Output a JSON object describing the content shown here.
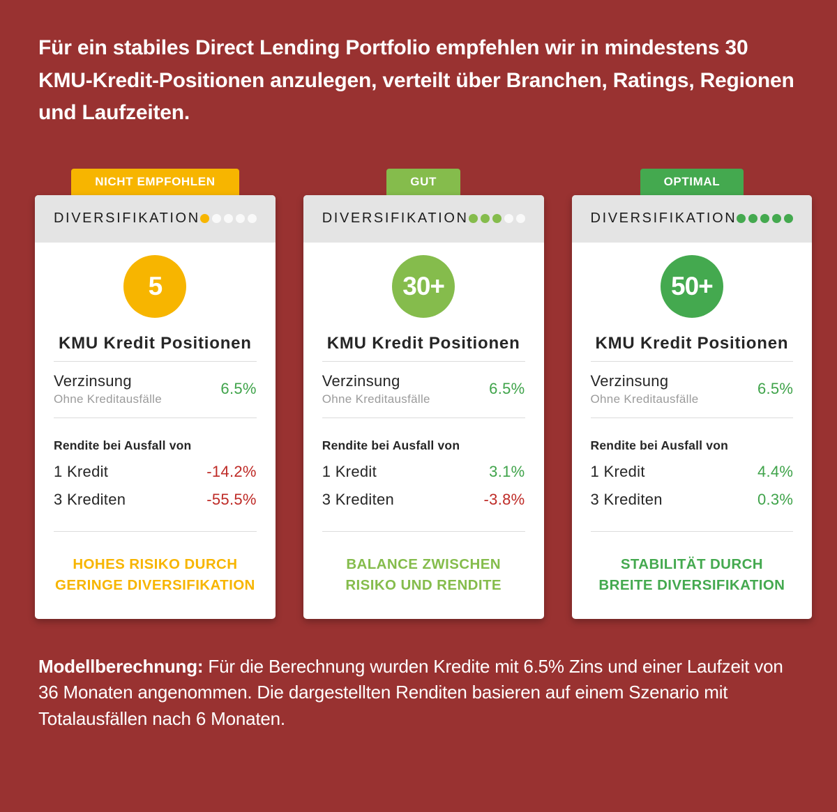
{
  "colors": {
    "background": "#993231",
    "card_bg": "#FFFFFF",
    "header_bg": "#E4E4E4",
    "empty_dot": "#F9F9F9",
    "yellow": "#F7B500",
    "light_green": "#85BC4C",
    "green": "#44A94F",
    "value_green": "#3FA34A",
    "value_red": "#BE2A26",
    "dark_text": "#262626",
    "muted_text": "#9B9B9B",
    "white": "#FFFFFF"
  },
  "headline": "Für ein stabiles Direct Lending Portfolio empfehlen wir in mindestens 30 KMU-Kredit-Positionen anzulegen, verteilt über Branchen, Ratings, Regionen und Laufzeiten.",
  "cards": [
    {
      "badge": "NICHT EMPFOHLEN",
      "badge_color": "#F7B500",
      "header": "DIVERSIFIKATION",
      "dots_total": 5,
      "dots_filled": 1,
      "dot_color": "#F7B500",
      "circle_value": "5",
      "circle_color": "#F7B500",
      "title": "KMU Kredit Positionen",
      "interest_label": "Verzinsung",
      "interest_sub": "Ohne Kreditausfälle",
      "interest_value": "6.5%",
      "interest_value_color": "#3FA34A",
      "default_heading": "Rendite bei Ausfall von",
      "rows": [
        {
          "label": "1 Kredit",
          "value": "-14.2%",
          "color": "#BE2A26"
        },
        {
          "label": "3 Krediten",
          "value": "-55.5%",
          "color": "#BE2A26"
        }
      ],
      "message_line1": "HOHES RISIKO DURCH",
      "message_line2": "GERINGE DIVERSIFIKATION",
      "message_color": "#F7B500"
    },
    {
      "badge": "GUT",
      "badge_color": "#85BC4C",
      "header": "DIVERSIFIKATION",
      "dots_total": 5,
      "dots_filled": 3,
      "dot_color": "#85BC4C",
      "circle_value": "30+",
      "circle_color": "#85BC4C",
      "title": "KMU Kredit Positionen",
      "interest_label": "Verzinsung",
      "interest_sub": "Ohne Kreditausfälle",
      "interest_value": "6.5%",
      "interest_value_color": "#3FA34A",
      "default_heading": "Rendite bei Ausfall von",
      "rows": [
        {
          "label": "1 Kredit",
          "value": "3.1%",
          "color": "#3FA34A"
        },
        {
          "label": "3 Krediten",
          "value": "-3.8%",
          "color": "#BE2A26"
        }
      ],
      "message_line1": "BALANCE ZWISCHEN",
      "message_line2": "RISIKO UND RENDITE",
      "message_color": "#85BC4C"
    },
    {
      "badge": "OPTIMAL",
      "badge_color": "#44A94F",
      "header": "DIVERSIFIKATION",
      "dots_total": 5,
      "dots_filled": 5,
      "dot_color": "#44A94F",
      "circle_value": "50+",
      "circle_color": "#44A94F",
      "title": "KMU Kredit Positionen",
      "interest_label": "Verzinsung",
      "interest_sub": "Ohne Kreditausfälle",
      "interest_value": "6.5%",
      "interest_value_color": "#3FA34A",
      "default_heading": "Rendite bei Ausfall von",
      "rows": [
        {
          "label": "1 Kredit",
          "value": "4.4%",
          "color": "#3FA34A"
        },
        {
          "label": "3 Krediten",
          "value": "0.3%",
          "color": "#3FA34A"
        }
      ],
      "message_line1": "STABILITÄT DURCH",
      "message_line2": "BREITE DIVERSIFIKATION",
      "message_color": "#44A94F"
    }
  ],
  "footnote": {
    "bold_label": "Modellberechnung:",
    "text": " Für die Berechnung wurden Kredite mit 6.5% Zins und einer Laufzeit von 36 Monaten angenommen. Die dargestellten Renditen basieren auf einem Szenario mit Totalausfällen nach 6 Monaten."
  }
}
